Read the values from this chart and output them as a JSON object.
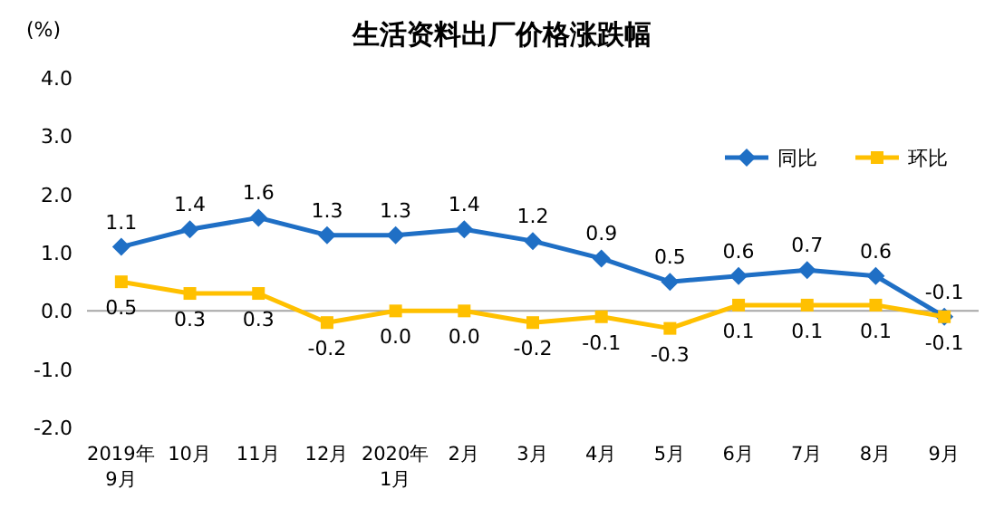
{
  "chart_data": {
    "type": "line",
    "title": "生活资料出厂价格涨跌幅",
    "ylabel": "(%)",
    "categories": [
      "2019年\n9月",
      "10月",
      "11月",
      "12月",
      "2020年\n1月",
      "2月",
      "3月",
      "4月",
      "5月",
      "6月",
      "7月",
      "8月",
      "9月"
    ],
    "ylim": [
      -2,
      4
    ],
    "yticks": [
      {
        "value": -2,
        "label": "-2.0"
      },
      {
        "value": -1,
        "label": "-1.0"
      },
      {
        "value": 0,
        "label": "0.0"
      },
      {
        "value": 1,
        "label": "1.0"
      },
      {
        "value": 2,
        "label": "2.0"
      },
      {
        "value": 3,
        "label": "3.0"
      },
      {
        "value": 4,
        "label": "4.0"
      }
    ],
    "legend": "top right",
    "series": [
      {
        "name": "同比",
        "color": "#1f6fc5",
        "marker": "diamond",
        "values": [
          1.1,
          1.4,
          1.6,
          1.3,
          1.3,
          1.4,
          1.2,
          0.9,
          0.5,
          0.6,
          0.7,
          0.6,
          -0.1
        ],
        "value_labels": [
          "1.1",
          "1.4",
          "1.6",
          "1.3",
          "1.3",
          "1.4",
          "1.2",
          "0.9",
          "0.5",
          "0.6",
          "0.7",
          "0.6",
          "-0.1"
        ]
      },
      {
        "name": "环比",
        "color": "#ffc000",
        "marker": "square",
        "values": [
          0.5,
          0.3,
          0.3,
          -0.2,
          0.0,
          0.0,
          -0.2,
          -0.1,
          -0.3,
          0.1,
          0.1,
          0.1,
          -0.1
        ],
        "value_labels": [
          "0.5",
          "0.3",
          "0.3",
          "-0.2",
          "0.0",
          "0.0",
          "-0.2",
          "-0.1",
          "-0.3",
          "0.1",
          "0.1",
          "0.1",
          "-0.1"
        ]
      }
    ]
  }
}
